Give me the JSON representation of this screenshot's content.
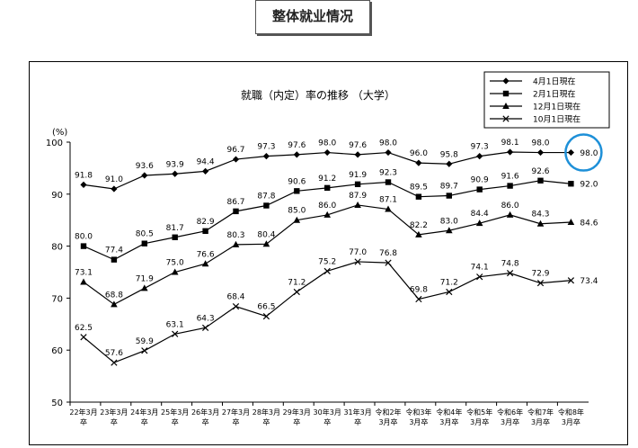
{
  "header": {
    "title": "整体就业情况"
  },
  "chart_data": {
    "type": "line",
    "title": "就職（内定）率の推移 （大学）",
    "ylabel": "(%)",
    "ylim": [
      50,
      100
    ],
    "yticks": [
      50,
      60,
      70,
      80,
      90,
      100
    ],
    "grid": false,
    "legend_position": "top-right",
    "categories": [
      [
        "22年3月",
        "卒"
      ],
      [
        "23年3月",
        "卒"
      ],
      [
        "24年3月",
        "卒"
      ],
      [
        "25年3月",
        "卒"
      ],
      [
        "26年3月",
        "卒"
      ],
      [
        "27年3月",
        "卒"
      ],
      [
        "28年3月",
        "卒"
      ],
      [
        "29年3月",
        "卒"
      ],
      [
        "30年3月",
        "卒"
      ],
      [
        "31年3月",
        "卒"
      ],
      [
        "令和2年",
        "3月卒"
      ],
      [
        "令和3年",
        "3月卒"
      ],
      [
        "令和4年",
        "3月卒"
      ],
      [
        "令和5年",
        "3月卒"
      ],
      [
        "令和6年",
        "3月卒"
      ],
      [
        "令和7年",
        "3月卒"
      ],
      [
        "令和8年",
        "3月卒"
      ]
    ],
    "series": [
      {
        "name": "4月1日現在",
        "marker": "diamond",
        "values": [
          91.8,
          91.0,
          93.6,
          93.9,
          94.4,
          96.7,
          97.3,
          97.6,
          98.0,
          97.6,
          98.0,
          96.0,
          95.8,
          97.3,
          98.1,
          98.0,
          98.0
        ]
      },
      {
        "name": "2月1日現在",
        "marker": "square",
        "values": [
          80.0,
          77.4,
          80.5,
          81.7,
          82.9,
          86.7,
          87.8,
          90.6,
          91.2,
          91.9,
          92.3,
          89.5,
          89.7,
          90.9,
          91.6,
          92.6,
          92.0
        ]
      },
      {
        "name": "12月1日現在",
        "marker": "triangle",
        "values": [
          73.1,
          68.8,
          71.9,
          75.0,
          76.6,
          80.3,
          80.4,
          85.0,
          86.0,
          87.9,
          87.1,
          82.2,
          83.0,
          84.4,
          86.0,
          84.3,
          84.6
        ]
      },
      {
        "name": "10月1日現在",
        "marker": "x",
        "values": [
          62.5,
          57.6,
          59.9,
          63.1,
          64.3,
          68.4,
          66.5,
          71.2,
          75.2,
          77.0,
          76.8,
          69.8,
          71.2,
          74.1,
          74.8,
          72.9,
          73.4
        ]
      }
    ],
    "annotations": [
      {
        "type": "circle-highlight",
        "series": "4月1日現在",
        "index": 16,
        "color": "#1e90d8"
      }
    ]
  }
}
